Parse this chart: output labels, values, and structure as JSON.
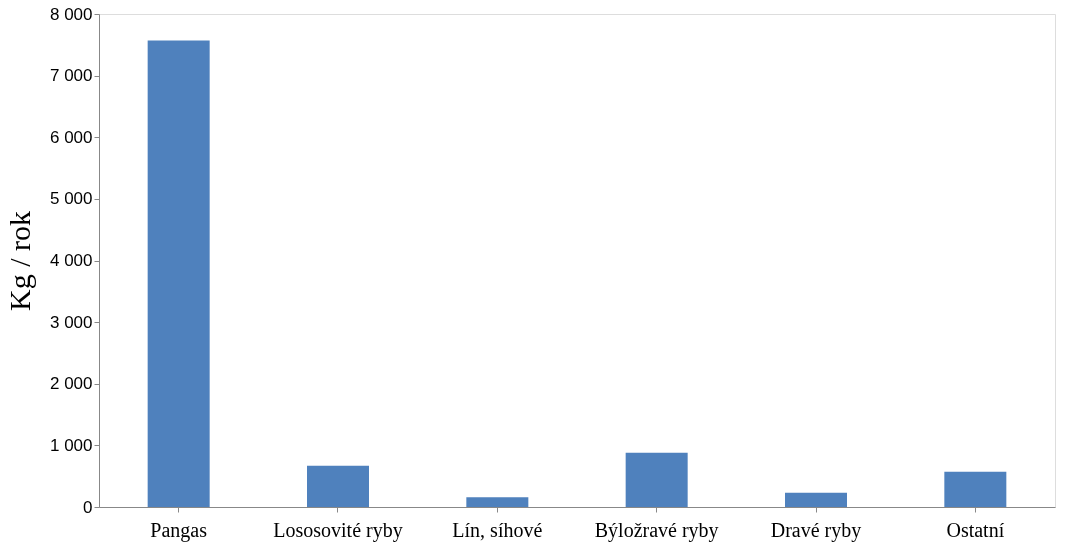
{
  "chart_data": {
    "type": "bar",
    "ylabel": "Kg / rok",
    "categories": [
      "Pangas",
      "Lososovité ryby",
      "Lín, síhové",
      "Býložravé ryby",
      "Dravé ryby",
      "Ostatní"
    ],
    "values": [
      7570,
      670,
      160,
      880,
      230,
      570
    ],
    "color": "#4f81bd",
    "ylim": [
      0,
      8000
    ],
    "yticks": [
      {
        "value": 0,
        "label": "0"
      },
      {
        "value": 1000,
        "label": "1 000"
      },
      {
        "value": 2000,
        "label": "2 000"
      },
      {
        "value": 3000,
        "label": "3 000"
      },
      {
        "value": 4000,
        "label": "4 000"
      },
      {
        "value": 5000,
        "label": "5 000"
      },
      {
        "value": 6000,
        "label": "6 000"
      },
      {
        "value": 7000,
        "label": "7 000"
      },
      {
        "value": 8000,
        "label": "8 000"
      }
    ],
    "grid": false
  }
}
